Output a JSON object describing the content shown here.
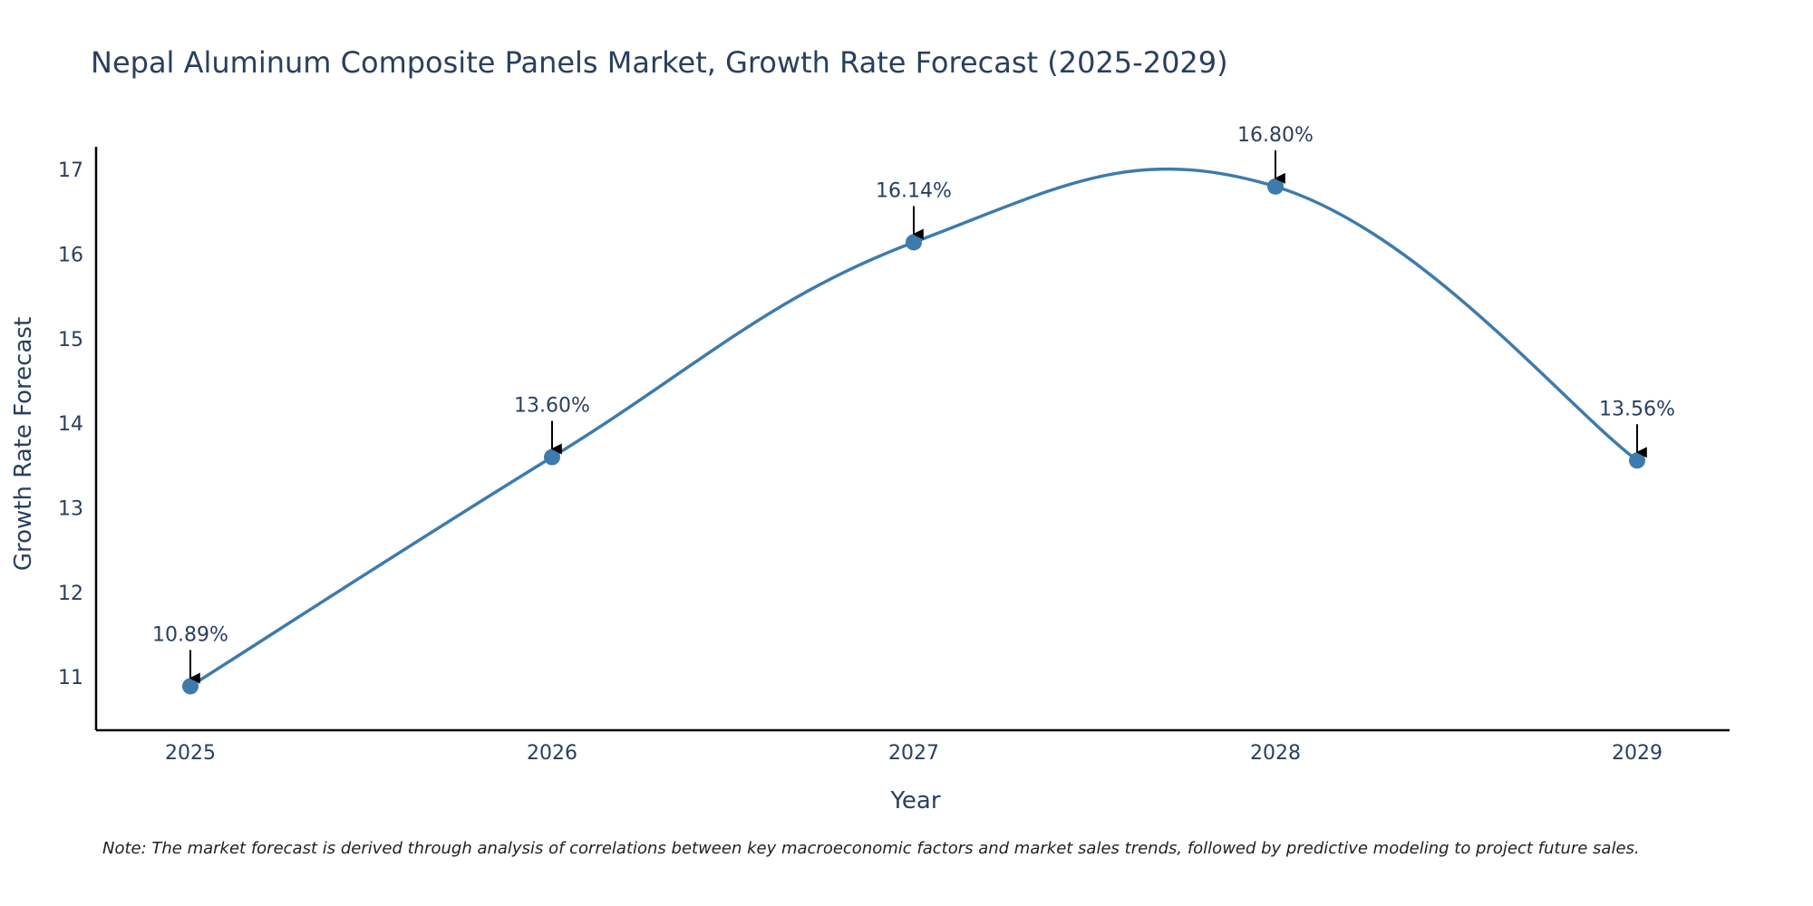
{
  "chart_data": {
    "type": "line",
    "title": "Nepal Aluminum Composite Panels Market, Growth Rate Forecast (2025-2029)",
    "xlabel": "Year",
    "ylabel": "Growth Rate Forecast",
    "categories": [
      "2025",
      "2026",
      "2027",
      "2028",
      "2029"
    ],
    "values": [
      10.89,
      13.6,
      16.14,
      16.8,
      13.56
    ],
    "data_labels": [
      "10.89%",
      "13.60%",
      "16.14%",
      "16.80%",
      "13.56%"
    ],
    "yticks": [
      11,
      12,
      13,
      14,
      15,
      16,
      17
    ],
    "ylim": [
      10.37,
      17.27
    ],
    "line_shape": "spline",
    "grid": false,
    "note": "Note: The market forecast is derived through analysis of correlations between key macroeconomic factors and market sales trends, followed by predictive modeling to project future sales.",
    "colors": {
      "line": "#3d7bad",
      "marker": "#3d7bad",
      "text": "#2a3f5f",
      "axis": "#000000",
      "arrow": "#000000"
    }
  }
}
